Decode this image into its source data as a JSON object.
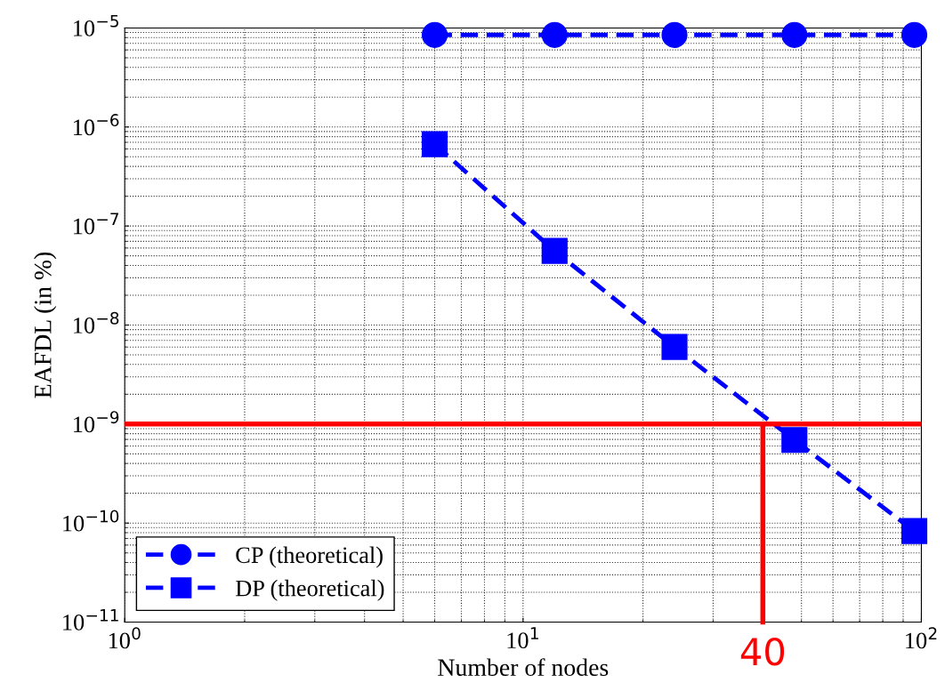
{
  "chart_data": {
    "type": "line",
    "xlabel": "Number of nodes",
    "ylabel": "EAFDL (in %)",
    "x": [
      6,
      12,
      24,
      48,
      96
    ],
    "series": [
      {
        "name": "CP (theoretical)",
        "color": "#0000ff",
        "marker": "circle",
        "values": [
          8.5e-06,
          8.5e-06,
          8.5e-06,
          8.5e-06,
          8.5e-06
        ]
      },
      {
        "name": "DP (theoretical)",
        "color": "#0000ff",
        "marker": "square",
        "values": [
          6.7e-07,
          5.6e-08,
          6e-09,
          6.9e-10,
          8.3e-11
        ]
      }
    ],
    "log": "xy",
    "line_style": "dashed",
    "grid": true,
    "legend": "bottom left",
    "xlim": [
      1,
      100
    ],
    "ylim": [
      1e-11,
      1e-05
    ],
    "xticks": [
      {
        "value": 1,
        "label": "10$^{0}$"
      },
      {
        "value": 10,
        "label": "10$^{1}$"
      },
      {
        "value": 100,
        "label": "10$^{2}$"
      }
    ],
    "yticks": [
      {
        "value": 1e-11,
        "label": "10$^{−11}$"
      },
      {
        "value": 1e-10,
        "label": "10$^{−10}$"
      },
      {
        "value": 1e-09,
        "label": "10$^{−9}$"
      },
      {
        "value": 1e-08,
        "label": "10$^{−8}$"
      },
      {
        "value": 1e-07,
        "label": "10$^{−7}$"
      },
      {
        "value": 1e-06,
        "label": "10$^{−6}$"
      },
      {
        "value": 1e-05,
        "label": "10$^{−5}$"
      }
    ],
    "ref_lines": [
      {
        "axis": "y",
        "value": 1e-09,
        "label": null,
        "color": "#ff0000"
      },
      {
        "axis": "x",
        "value": 40,
        "label": "40",
        "color": "#ff0000"
      }
    ]
  }
}
